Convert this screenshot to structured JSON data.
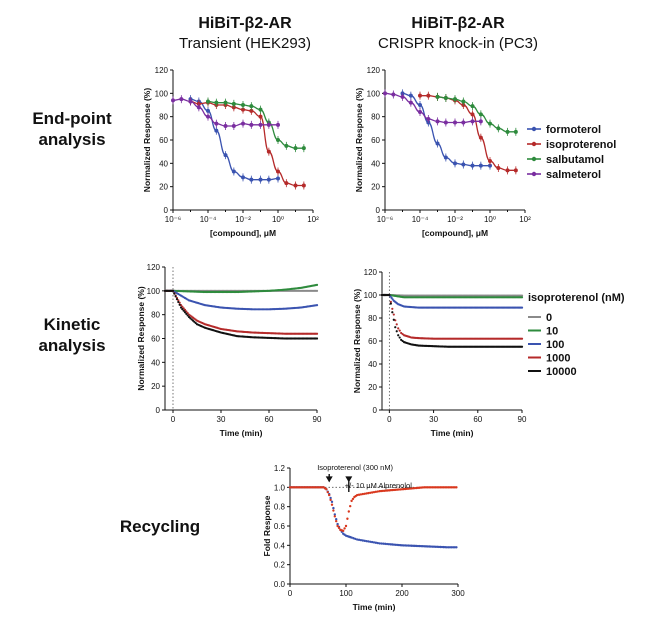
{
  "figure": {
    "row_labels": {
      "endpoint_line1": "End-point",
      "endpoint_line2": "analysis",
      "kinetic_line1": "Kinetic",
      "kinetic_line2": "analysis",
      "recycling": "Recycling"
    },
    "columns": {
      "left_title": "HiBiT-β2-AR",
      "left_subtitle": "Transient (HEK293)",
      "right_title": "HiBiT-β2-AR",
      "right_subtitle": "CRISPR knock-in (PC3)"
    },
    "endpoint_legend": [
      {
        "label": "formoterol",
        "color": "#3a53b0"
      },
      {
        "label": "isoproterenol",
        "color": "#b52a2a"
      },
      {
        "label": "salbutamol",
        "color": "#2e8b3d"
      },
      {
        "label": "salmeterol",
        "color": "#7a2ea0"
      }
    ],
    "kinetic_legend": {
      "title": "isoproterenol (nM)",
      "items": [
        {
          "label": "0",
          "color": "#8a8a8a"
        },
        {
          "label": "10",
          "color": "#2e8b3d"
        },
        {
          "label": "100",
          "color": "#3a53b0"
        },
        {
          "label": "1000",
          "color": "#b52a2a"
        },
        {
          "label": "10000",
          "color": "#111111"
        }
      ]
    }
  },
  "chart_data": [
    {
      "id": "endpoint-hek293",
      "type": "scatter",
      "title": "HiBiT-β2-AR",
      "subtitle": "Transient (HEK293)",
      "xlabel": "[compound], μM",
      "ylabel": "Normalized Response (%)",
      "xscale": "log",
      "xlim": [
        1e-06,
        100
      ],
      "ylim": [
        0,
        120
      ],
      "xticks": [
        "10⁻⁶",
        "10⁻⁴",
        "10⁻²",
        "10⁰",
        "10²"
      ],
      "yticks": [
        0,
        20,
        40,
        60,
        80,
        100,
        120
      ],
      "series": [
        {
          "name": "formoterol",
          "color": "#3a53b0",
          "x": [
            1e-05,
            3e-05,
            0.0001,
            0.0003,
            0.001,
            0.003,
            0.01,
            0.03,
            0.1,
            0.3,
            1
          ],
          "y": [
            95,
            93,
            85,
            68,
            47,
            33,
            28,
            26,
            26,
            26,
            27
          ]
        },
        {
          "name": "isoproterenol",
          "color": "#b52a2a",
          "x": [
            1e-05,
            3e-05,
            0.0001,
            0.0003,
            0.001,
            0.003,
            0.01,
            0.03,
            0.1,
            0.3,
            1,
            3,
            10,
            30
          ],
          "y": [
            93,
            91,
            92,
            90,
            90,
            88,
            86,
            85,
            80,
            50,
            33,
            23,
            21,
            21
          ]
        },
        {
          "name": "salbutamol",
          "color": "#2e8b3d",
          "x": [
            0.0001,
            0.0003,
            0.001,
            0.003,
            0.01,
            0.03,
            0.1,
            0.3,
            1,
            3,
            10,
            30
          ],
          "y": [
            93,
            92,
            92,
            91,
            90,
            89,
            86,
            75,
            60,
            55,
            53,
            53
          ]
        },
        {
          "name": "salmeterol",
          "color": "#7a2ea0",
          "x": [
            1e-06,
            3e-06,
            1e-05,
            3e-05,
            0.0001,
            0.0003,
            0.001,
            0.003,
            0.01,
            0.03,
            0.1,
            0.3,
            1
          ],
          "y": [
            94,
            95,
            93,
            88,
            80,
            74,
            72,
            72,
            74,
            73,
            73,
            73,
            73
          ]
        }
      ]
    },
    {
      "id": "endpoint-pc3",
      "type": "scatter",
      "title": "HiBiT-β2-AR",
      "subtitle": "CRISPR knock-in (PC3)",
      "xlabel": "[compound], μM",
      "ylabel": "Normalized Response (%)",
      "xscale": "log",
      "xlim": [
        1e-06,
        100
      ],
      "ylim": [
        0,
        120
      ],
      "xticks": [
        "10⁻⁶",
        "10⁻⁴",
        "10⁻²",
        "10⁰",
        "10²"
      ],
      "yticks": [
        0,
        20,
        40,
        60,
        80,
        100,
        120
      ],
      "series": [
        {
          "name": "formoterol",
          "color": "#3a53b0",
          "x": [
            1e-05,
            3e-05,
            0.0001,
            0.0003,
            0.001,
            0.003,
            0.01,
            0.03,
            0.1,
            0.3,
            1
          ],
          "y": [
            100,
            98,
            90,
            75,
            57,
            45,
            40,
            39,
            38,
            38,
            38
          ]
        },
        {
          "name": "isoproterenol",
          "color": "#b52a2a",
          "x": [
            0.0001,
            0.0003,
            0.001,
            0.003,
            0.01,
            0.03,
            0.1,
            0.3,
            1,
            3,
            10,
            30
          ],
          "y": [
            98,
            98,
            97,
            96,
            94,
            90,
            82,
            62,
            42,
            36,
            34,
            34
          ]
        },
        {
          "name": "salbutamol",
          "color": "#2e8b3d",
          "x": [
            0.001,
            0.003,
            0.01,
            0.03,
            0.1,
            0.3,
            1,
            3,
            10,
            30
          ],
          "y": [
            97,
            96,
            95,
            93,
            89,
            82,
            74,
            70,
            67,
            67
          ]
        },
        {
          "name": "salmeterol",
          "color": "#7a2ea0",
          "x": [
            1e-06,
            3e-06,
            1e-05,
            3e-05,
            0.0001,
            0.0003,
            0.001,
            0.003,
            0.01,
            0.03,
            0.1,
            0.3
          ],
          "y": [
            100,
            99,
            97,
            92,
            84,
            78,
            76,
            75,
            75,
            75,
            76,
            76
          ]
        }
      ]
    },
    {
      "id": "kinetic-hek293",
      "type": "line",
      "xlabel": "Time (min)",
      "ylabel": "Normalized Response (%)",
      "xlim": [
        -5,
        90
      ],
      "ylim": [
        0,
        120
      ],
      "xticks": [
        0,
        30,
        60,
        90
      ],
      "yticks": [
        0,
        20,
        40,
        60,
        80,
        100,
        120
      ],
      "vline_x": 0,
      "series": [
        {
          "name": "0",
          "color": "#8a8a8a",
          "t": [
            -5,
            0,
            10,
            20,
            30,
            40,
            50,
            60,
            70,
            80,
            90
          ],
          "y": [
            100,
            100,
            100,
            100,
            100,
            100,
            100,
            100,
            100,
            100,
            100
          ]
        },
        {
          "name": "10",
          "color": "#2e8b3d",
          "t": [
            -5,
            0,
            10,
            20,
            30,
            40,
            50,
            60,
            70,
            80,
            90
          ],
          "y": [
            100,
            100,
            99.5,
            99,
            99,
            99,
            99.5,
            100,
            101,
            102.5,
            105
          ]
        },
        {
          "name": "100",
          "color": "#3a53b0",
          "t": [
            -5,
            0,
            5,
            10,
            20,
            30,
            40,
            50,
            60,
            70,
            80,
            90
          ],
          "y": [
            100,
            100,
            96,
            92,
            88,
            86,
            85,
            84.5,
            84.5,
            85,
            86,
            88
          ]
        },
        {
          "name": "1000",
          "color": "#b52a2a",
          "t": [
            -5,
            0,
            5,
            10,
            15,
            20,
            30,
            40,
            50,
            60,
            70,
            80,
            90
          ],
          "y": [
            100,
            100,
            88,
            80,
            75,
            72,
            68,
            66,
            65,
            64.5,
            64,
            64,
            64
          ]
        },
        {
          "name": "10000",
          "color": "#111111",
          "t": [
            -5,
            0,
            5,
            10,
            15,
            20,
            30,
            40,
            50,
            60,
            70,
            80,
            90
          ],
          "y": [
            100,
            100,
            86,
            78,
            72,
            69,
            65,
            62,
            61,
            60.5,
            60,
            60,
            60
          ]
        }
      ]
    },
    {
      "id": "kinetic-pc3",
      "type": "line",
      "xlabel": "Time (min)",
      "ylabel": "Normalized Response (%)",
      "xlim": [
        -5,
        90
      ],
      "ylim": [
        0,
        120
      ],
      "xticks": [
        0,
        30,
        60,
        90
      ],
      "yticks": [
        0,
        20,
        40,
        60,
        80,
        100,
        120
      ],
      "vline_x": 0,
      "series": [
        {
          "name": "0",
          "color": "#8a8a8a",
          "t": [
            -5,
            0,
            10,
            20,
            30,
            40,
            50,
            60,
            70,
            80,
            90
          ],
          "y": [
            100,
            100,
            99.5,
            99.5,
            99.5,
            99.5,
            99.5,
            99.5,
            99.5,
            99.5,
            99.5
          ]
        },
        {
          "name": "10",
          "color": "#2e8b3d",
          "t": [
            -5,
            0,
            10,
            20,
            30,
            40,
            50,
            60,
            70,
            80,
            90
          ],
          "y": [
            100,
            100,
            98,
            98,
            98,
            98,
            98,
            98,
            98,
            98,
            98
          ]
        },
        {
          "name": "100",
          "color": "#3a53b0",
          "t": [
            -5,
            0,
            3,
            6,
            10,
            20,
            30,
            40,
            50,
            60,
            70,
            80,
            90
          ],
          "y": [
            100,
            100,
            95,
            92,
            90,
            89,
            89,
            89,
            89,
            89,
            89,
            89,
            89
          ]
        },
        {
          "name": "1000",
          "color": "#b52a2a",
          "t": [
            -5,
            0,
            2,
            4,
            6,
            8,
            10,
            15,
            20,
            30,
            40,
            50,
            60,
            70,
            80,
            90
          ],
          "y": [
            100,
            100,
            88,
            78,
            71,
            67,
            65,
            63,
            62.5,
            62,
            62,
            62,
            62,
            62,
            62,
            62
          ]
        },
        {
          "name": "10000",
          "color": "#111111",
          "t": [
            -5,
            0,
            2,
            4,
            6,
            8,
            10,
            15,
            20,
            30,
            40,
            50,
            60,
            70,
            80,
            90
          ],
          "y": [
            100,
            100,
            85,
            72,
            65,
            61,
            59,
            57,
            56,
            55.5,
            55,
            55,
            55,
            55,
            55,
            55
          ]
        }
      ]
    },
    {
      "id": "recycling",
      "type": "scatter",
      "xlabel": "Time (min)",
      "ylabel": "Fold Response",
      "xlim": [
        0,
        300
      ],
      "ylim": [
        0,
        1.2
      ],
      "xticks": [
        0,
        100,
        200,
        300
      ],
      "yticks": [
        0.0,
        0.2,
        0.4,
        0.6,
        0.8,
        1.0,
        1.2
      ],
      "reference_line_y": 1.0,
      "annotations": [
        {
          "text": "Isoproterenol (300 nM)",
          "x": 70
        },
        {
          "text": "+/- 10 μM Alprenolol",
          "x": 105
        }
      ],
      "series": [
        {
          "name": "",
          "color": "#3a53b0",
          "t": [
            0,
            20,
            40,
            60,
            65,
            70,
            75,
            80,
            85,
            90,
            95,
            100,
            105,
            110,
            120,
            130,
            140,
            150,
            160,
            170,
            180,
            200,
            220,
            240,
            260,
            280,
            300
          ],
          "y": [
            1.0,
            1.0,
            1.0,
            1.0,
            0.98,
            0.93,
            0.85,
            0.72,
            0.62,
            0.56,
            0.52,
            0.5,
            0.49,
            0.48,
            0.46,
            0.45,
            0.44,
            0.43,
            0.42,
            0.415,
            0.41,
            0.4,
            0.395,
            0.39,
            0.385,
            0.38,
            0.38
          ]
        },
        {
          "name": "",
          "color": "#d9381e",
          "t": [
            0,
            20,
            40,
            60,
            65,
            70,
            75,
            80,
            85,
            90,
            95,
            100,
            105,
            110,
            115,
            120,
            130,
            140,
            150,
            160,
            180,
            200,
            220,
            240,
            260,
            280,
            300
          ],
          "y": [
            1.0,
            1.0,
            1.0,
            1.0,
            0.98,
            0.92,
            0.82,
            0.7,
            0.6,
            0.56,
            0.55,
            0.6,
            0.75,
            0.86,
            0.9,
            0.92,
            0.93,
            0.94,
            0.95,
            0.96,
            0.97,
            0.98,
            0.99,
            1.0,
            1.0,
            1.0,
            1.0
          ]
        }
      ]
    }
  ]
}
